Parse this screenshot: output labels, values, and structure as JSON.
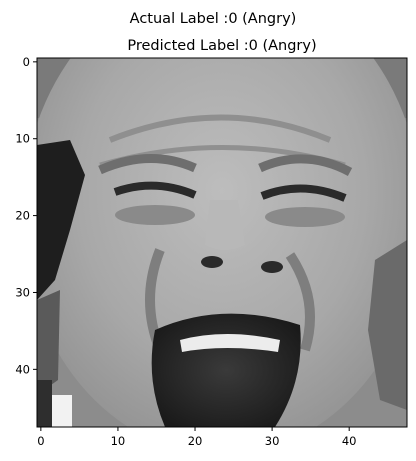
{
  "chart_data": {
    "type": "heatmap",
    "suptitle": "Actual Label :0 (Angry)",
    "title": "Predicted Label :0 (Angry)",
    "xlabel": "",
    "ylabel": "",
    "xlim": [
      -0.5,
      47.5
    ],
    "ylim": [
      47.5,
      -0.5
    ],
    "x_ticks": [
      0,
      10,
      20,
      30,
      40
    ],
    "y_ticks": [
      0,
      10,
      20,
      30,
      40
    ],
    "colormap": "gray",
    "image_size": [
      48,
      48
    ],
    "image_content": "48x48 grayscale face photograph, not reproducible as values",
    "grid": false
  }
}
